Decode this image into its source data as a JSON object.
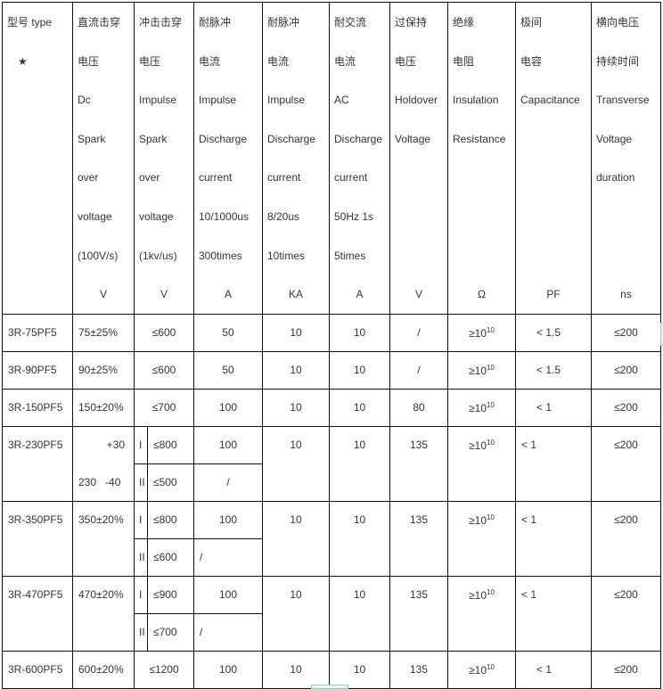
{
  "headers": [
    {
      "lines": [
        "",
        "",
        "型号  type",
        "",
        "★"
      ],
      "unit": ""
    },
    {
      "lines": [
        "直流击穿",
        "电压",
        "Dc",
        "Spark",
        "over",
        "voltage",
        "(100V/s)"
      ],
      "unit": "V"
    },
    {
      "lines": [
        "冲击击穿",
        "电压",
        "Impulse",
        "Spark",
        "over",
        "voltage",
        "(1kv/us)"
      ],
      "unit": "V"
    },
    {
      "lines": [
        "耐脉冲",
        "电流",
        "Impulse",
        "Discharge",
        "current",
        "10/1000us",
        "300times"
      ],
      "unit": "A"
    },
    {
      "lines": [
        "耐脉冲",
        "电流",
        "Impulse",
        "Discharge",
        "current",
        "8/20us",
        "10times"
      ],
      "unit": "KA"
    },
    {
      "lines": [
        "耐交流",
        "电流",
        "AC",
        "Discharge",
        "current",
        "50Hz 1s",
        "5times"
      ],
      "unit": "A"
    },
    {
      "lines": [
        "过保持",
        "电压",
        "Holdover",
        "Voltage"
      ],
      "unit": "V"
    },
    {
      "lines": [
        "绝缘",
        "电阻",
        "Insulation",
        "Resistance"
      ],
      "unit": "Ω"
    },
    {
      "lines": [
        "极间",
        "电容",
        "Capacitance"
      ],
      "unit": "PF"
    },
    {
      "lines": [
        "横向电压",
        "持续时间",
        "Transverse",
        "Voltage",
        "duration"
      ],
      "unit": "ns"
    }
  ],
  "rows": [
    {
      "model": "3R-75PF5",
      "dc": "75±25%",
      "impulse": "≤600",
      "ipc": "50",
      "ka": "10",
      "ac": "10",
      "hold": "/",
      "ins": "≥10",
      "ins_exp": "10",
      "cap": "< 1.5",
      "tv": "≤200"
    },
    {
      "model": "3R-90PF5",
      "dc": "90±25%",
      "impulse": "≤600",
      "ipc": "50",
      "ka": "10",
      "ac": "10",
      "hold": "/",
      "ins": "≥10",
      "ins_exp": "10",
      "cap": "< 1.5",
      "tv": "≤200"
    },
    {
      "model": "3R-150PF5",
      "dc": "150±20%",
      "impulse": "≤700",
      "ipc": "100",
      "ka": "10",
      "ac": "10",
      "hold": "80",
      "ins": "≥10",
      "ins_exp": "10",
      "cap": "< 1",
      "tv": "≤200"
    },
    {
      "model": "3R-230PF5",
      "dc_top": "+30",
      "dc_bottom": "230   -40",
      "sub": [
        {
          "n": "I",
          "v": "≤800",
          "ipc": "100"
        },
        {
          "n": "II",
          "v": "≤500",
          "ipc": "/"
        }
      ],
      "ka": "10",
      "ac": "10",
      "hold": "135",
      "ins": "≥10",
      "ins_exp": "10",
      "cap": "< 1",
      "tv": "≤200"
    },
    {
      "model": "3R-350PF5",
      "dc": "350±20%",
      "sub": [
        {
          "n": "I",
          "v": "≤800",
          "ipc": "100"
        },
        {
          "n": "II",
          "v": "≤600",
          "ipc": "/"
        }
      ],
      "ka": "10",
      "ac": "10",
      "hold": "135",
      "ins": "≥10",
      "ins_exp": "10",
      "cap": "< 1",
      "tv": "≤200"
    },
    {
      "model": "3R-470PF5",
      "dc": "470±20%",
      "sub": [
        {
          "n": "I",
          "v": "≤900",
          "ipc": "100"
        },
        {
          "n": "II",
          "v": "≤700",
          "ipc": "/"
        }
      ],
      "ka": "10",
      "ac": "10",
      "hold": "135",
      "ins": "≥10",
      "ins_exp": "10",
      "cap": "< 1",
      "tv": "≤200"
    },
    {
      "model": "3R-600PF5",
      "dc": "600±20%",
      "impulse": "≤1200",
      "ipc": "100",
      "ka": "10",
      "ac": "10",
      "hold": "135",
      "ins": "≥10",
      "ins_exp": "10",
      "cap": "< 1",
      "tv": "≤200"
    }
  ]
}
